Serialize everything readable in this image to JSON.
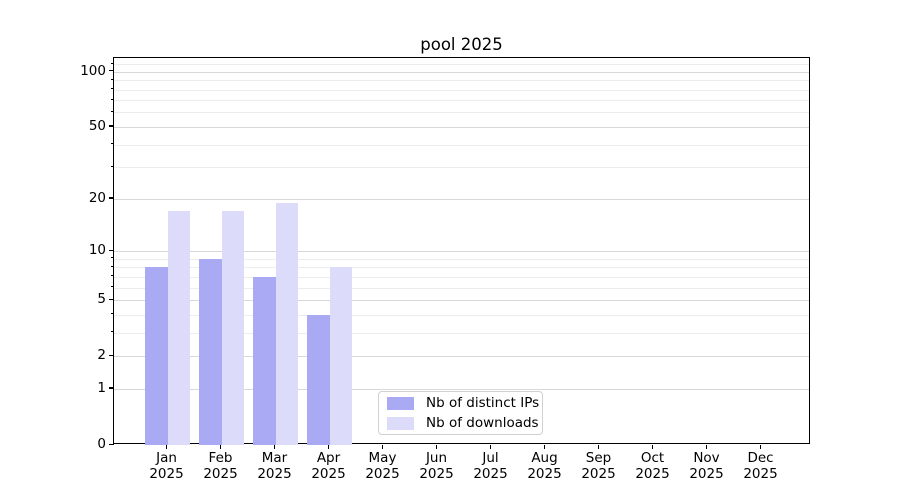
{
  "chart_data": {
    "type": "bar",
    "title": "pool 2025",
    "categories": [
      "Jan 2025",
      "Feb 2025",
      "Mar 2025",
      "Apr 2025",
      "May 2025",
      "Jun 2025",
      "Jul 2025",
      "Aug 2025",
      "Sep 2025",
      "Oct 2025",
      "Nov 2025",
      "Dec 2025"
    ],
    "x_tick_line1": [
      "Jan",
      "Feb",
      "Mar",
      "Apr",
      "May",
      "Jun",
      "Jul",
      "Aug",
      "Sep",
      "Oct",
      "Nov",
      "Dec"
    ],
    "x_tick_line2": "2025",
    "series": [
      {
        "name": "Nb of distinct IPs",
        "color": "#a9a9f4",
        "values": [
          8,
          9,
          7,
          4,
          0,
          0,
          0,
          0,
          0,
          0,
          0,
          0
        ]
      },
      {
        "name": "Nb of downloads",
        "color": "#dcdcfa",
        "values": [
          17,
          17,
          19,
          8,
          0,
          0,
          0,
          0,
          0,
          0,
          0,
          0
        ]
      }
    ],
    "y_axis": {
      "scale": "log10(1+v)",
      "tick_labels": [
        100,
        50,
        20,
        10,
        5,
        2,
        1,
        0
      ],
      "major_gridlines": [
        1,
        2,
        5,
        10,
        20,
        50,
        100
      ],
      "minor_gridlines": [
        3,
        4,
        6,
        7,
        8,
        9,
        30,
        40,
        60,
        70,
        80,
        90,
        110
      ],
      "ylim": [
        0,
        119
      ]
    },
    "grid": {
      "major_color": "#d8d8d8",
      "minor_color": "#ededed"
    },
    "legend": {
      "position": "bottom-center"
    },
    "colors": {
      "axis": "#000000",
      "text": "#000000",
      "background": "#ffffff"
    }
  }
}
